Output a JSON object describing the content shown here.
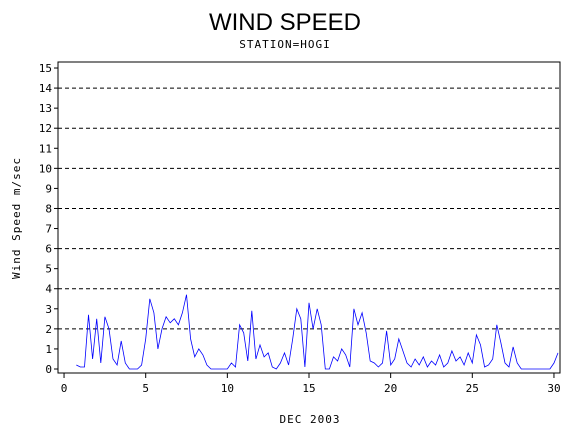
{
  "chart_data": {
    "type": "line",
    "title": "WIND SPEED",
    "subtitle": "STATION=HOGI",
    "xlabel": "DEC 2003",
    "ylabel": "Wind Speed m/sec",
    "xlim": [
      -0.37,
      30.37
    ],
    "xticks": [
      0,
      5,
      10,
      15,
      20,
      25,
      30
    ],
    "ylim": [
      -0.2,
      15.3
    ],
    "yticks": [
      0,
      1,
      2,
      3,
      4,
      5,
      6,
      7,
      8,
      9,
      10,
      11,
      12,
      13,
      14,
      15
    ],
    "grid": true,
    "color": "#0000ff",
    "x": [
      0.75,
      1.0,
      1.25,
      1.5,
      1.75,
      2.0,
      2.25,
      2.5,
      2.75,
      3.0,
      3.25,
      3.5,
      3.75,
      4.0,
      4.5,
      4.75,
      5.0,
      5.25,
      5.5,
      5.75,
      6.0,
      6.25,
      6.5,
      6.75,
      7.0,
      7.25,
      7.5,
      7.75,
      8.0,
      8.25,
      8.5,
      8.75,
      9.0,
      10.0,
      10.25,
      10.5,
      10.75,
      11.0,
      11.25,
      11.5,
      11.75,
      12.0,
      12.25,
      12.5,
      12.75,
      13.0,
      13.25,
      13.5,
      13.75,
      14.0,
      14.25,
      14.5,
      14.75,
      15.0,
      15.25,
      15.5,
      15.75,
      16.0,
      16.25,
      16.5,
      16.75,
      17.0,
      17.25,
      17.5,
      17.75,
      18.0,
      18.25,
      18.5,
      18.75,
      19.0,
      19.25,
      19.5,
      19.75,
      20.0,
      20.25,
      20.5,
      20.75,
      21.0,
      21.25,
      21.5,
      21.75,
      22.0,
      22.25,
      22.5,
      22.75,
      23.0,
      23.25,
      23.5,
      23.75,
      24.0,
      24.25,
      24.5,
      24.75,
      25.0,
      25.25,
      25.5,
      25.75,
      26.0,
      26.25,
      26.5,
      26.75,
      27.0,
      27.25,
      27.5,
      27.75,
      28.0,
      29.75,
      30.0,
      30.25
    ],
    "values": [
      0.2,
      0.1,
      0.1,
      2.7,
      0.5,
      2.5,
      0.3,
      2.6,
      2.0,
      0.5,
      0.2,
      1.4,
      0.3,
      0,
      0,
      0.2,
      1.5,
      3.5,
      2.8,
      1.0,
      2.0,
      2.6,
      2.3,
      2.5,
      2.2,
      2.8,
      3.7,
      1.5,
      0.6,
      1.0,
      0.7,
      0.2,
      0,
      0,
      0.3,
      0.1,
      2.2,
      1.8,
      0.4,
      2.9,
      0.5,
      1.2,
      0.6,
      0.8,
      0.1,
      0,
      0.3,
      0.8,
      0.2,
      1.5,
      3.0,
      2.5,
      0.1,
      3.3,
      2.0,
      3.0,
      2.2,
      0,
      0,
      0.6,
      0.4,
      1.0,
      0.7,
      0.1,
      3.0,
      2.2,
      2.8,
      1.8,
      0.4,
      0.3,
      0.1,
      0.3,
      1.9,
      0.2,
      0.5,
      1.5,
      0.9,
      0.3,
      0.1,
      0.5,
      0.2,
      0.6,
      0.1,
      0.4,
      0.2,
      0.7,
      0.1,
      0.3,
      0.9,
      0.4,
      0.6,
      0.2,
      0.8,
      0.3,
      1.7,
      1.2,
      0.1,
      0.2,
      0.5,
      2.2,
      1.3,
      0.3,
      0.1,
      1.1,
      0.3,
      0,
      0,
      0.3,
      0.8
    ]
  }
}
